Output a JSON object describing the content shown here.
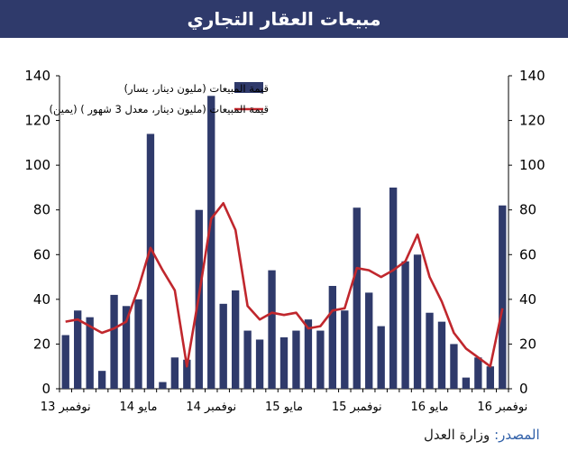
{
  "header": {
    "title": "مبيعات العقار التجاري"
  },
  "source": {
    "label": "المصدر:",
    "value": "وزارة العدل"
  },
  "chart_data": {
    "type": "bar",
    "title": "مبيعات العقار التجاري",
    "colors": {
      "bars": "#2f3a6b",
      "line": "#c0272d",
      "grid": "#d9d9d9"
    },
    "left_axis": {
      "min": 0,
      "max": 140,
      "ticks": [
        0,
        20,
        40,
        60,
        80,
        100,
        120,
        140
      ]
    },
    "right_axis": {
      "min": 0,
      "max": 140,
      "ticks": [
        0,
        20,
        40,
        60,
        80,
        100,
        120,
        140
      ]
    },
    "x_tick_labels": [
      "نوفمبر 13",
      "مايو 14",
      "نوفمبر 14",
      "مايو 15",
      "نوفمبر 15",
      "مايو 16",
      "نوفمبر 16"
    ],
    "x_tick_index": [
      0,
      6,
      12,
      18,
      24,
      30,
      36
    ],
    "grid": false,
    "legend_position": "top-right",
    "series": [
      {
        "name": "قيمة المبيعات (مليون دينار، يسار)",
        "type": "bar",
        "axis": "left",
        "values": [
          24,
          35,
          32,
          8,
          42,
          37,
          40,
          114,
          3,
          14,
          13,
          80,
          131,
          38,
          44,
          26,
          22,
          53,
          23,
          26,
          31,
          26,
          46,
          35,
          81,
          43,
          28,
          90,
          57,
          60,
          34,
          30,
          20,
          5,
          14,
          10,
          82
        ]
      },
      {
        "name": "قيمة المبيعات (مليون دينار، معدل 3 شهور ) (يمين)",
        "type": "line",
        "axis": "right",
        "values": [
          30,
          31,
          28,
          25,
          27,
          30,
          45,
          63,
          53,
          44,
          10,
          42,
          76,
          83,
          71,
          37,
          31,
          34,
          33,
          34,
          27,
          28,
          35,
          36,
          54,
          53,
          50,
          53,
          57,
          69,
          50,
          39,
          25,
          18,
          14,
          10,
          36
        ]
      }
    ]
  }
}
